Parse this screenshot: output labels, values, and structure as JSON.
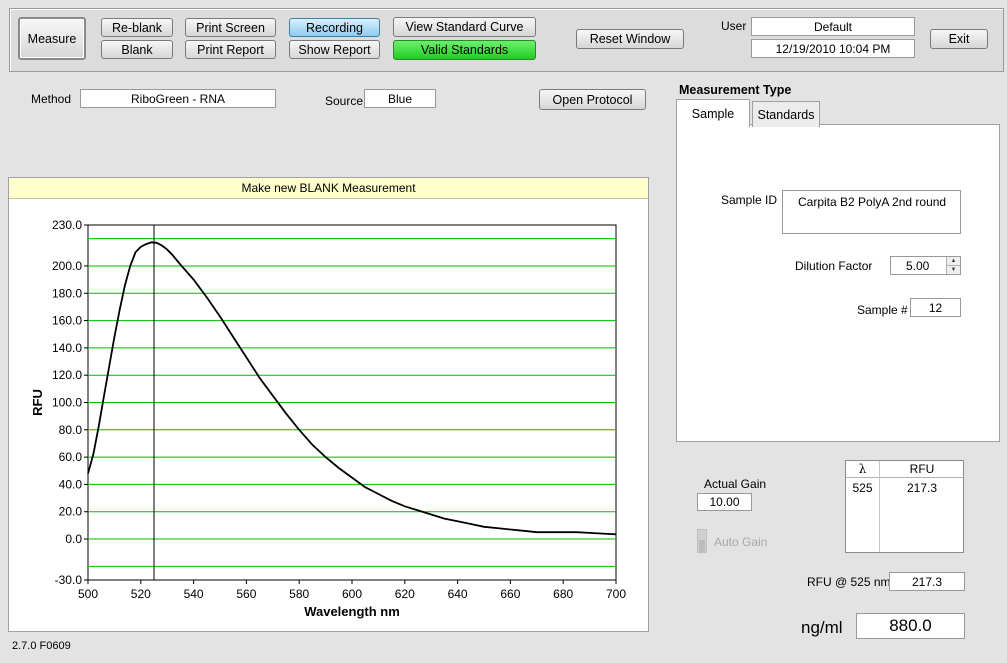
{
  "toolbar": {
    "measure": "Measure",
    "reblank": "Re-blank",
    "blank": "Blank",
    "print_screen": "Print Screen",
    "print_report": "Print Report",
    "recording": "Recording",
    "show_report": "Show Report",
    "view_standard_curve": "View Standard Curve",
    "valid_standards": "Valid Standards",
    "reset_window": "Reset Window",
    "user_label": "User",
    "user_value": "Default",
    "datetime": "12/19/2010  10:04 PM",
    "exit": "Exit"
  },
  "method": {
    "label": "Method",
    "value": "RiboGreen - RNA"
  },
  "source": {
    "label": "Source",
    "value": "Blue"
  },
  "open_protocol": "Open Protocol",
  "measurement_type": {
    "title": "Measurement Type",
    "tabs": [
      "Sample",
      "Standards"
    ],
    "active_tab": 0,
    "sample_id_label": "Sample ID",
    "sample_id_value": "Carpita B2 PolyA 2nd round",
    "dilution_label": "Dilution Factor",
    "dilution_value": "5.00",
    "sample_num_label": "Sample #",
    "sample_num_value": "12"
  },
  "gain": {
    "actual_label": "Actual Gain",
    "actual_value": "10.00",
    "auto_label": "Auto Gain"
  },
  "rfu_table": {
    "headers": [
      "λ",
      "RFU"
    ],
    "rows": [
      [
        "525",
        "217.3"
      ]
    ]
  },
  "rfu_at": {
    "label": "RFU @ 525 nm",
    "value": "217.3"
  },
  "conc": {
    "label": "ng/ml",
    "value": "880.0"
  },
  "version": "2.7.0 F0609",
  "chart_banner": "Make new BLANK Measurement",
  "chart_data": {
    "type": "line",
    "xlabel": "Wavelength  nm",
    "ylabel": "RFU",
    "xlim": [
      500,
      700
    ],
    "ylim": [
      -30,
      230
    ],
    "x_ticks": [
      500,
      520,
      540,
      560,
      580,
      600,
      620,
      640,
      660,
      680,
      700
    ],
    "y_ticks": [
      230.0,
      200.0,
      180.0,
      160.0,
      140.0,
      120.0,
      100.0,
      80.0,
      60.0,
      40.0,
      20.0,
      0.0,
      -30.0
    ],
    "y_tick_labels": [
      "230.0",
      "200.0",
      "180.0",
      "160.0",
      "140.0",
      "120.0",
      "100.0",
      "80.0",
      "60.0",
      "40.0",
      "20.0",
      "0.0",
      "-30.0"
    ],
    "gridlines_y": [
      220,
      200,
      180,
      160,
      140,
      120,
      100,
      80,
      60,
      40,
      20,
      0,
      -20
    ],
    "grid_color": "#00bb00",
    "cursor_x": 525,
    "series": [
      {
        "color": "#000000",
        "x": [
          500,
          502,
          504,
          506,
          508,
          510,
          512,
          514,
          516,
          518,
          520,
          522,
          524,
          526,
          528,
          530,
          532,
          535,
          540,
          545,
          550,
          555,
          560,
          565,
          570,
          575,
          580,
          585,
          590,
          595,
          600,
          605,
          610,
          615,
          620,
          625,
          630,
          635,
          640,
          645,
          650,
          655,
          660,
          665,
          670,
          675,
          680,
          685,
          690,
          695,
          700
        ],
        "y": [
          48,
          62,
          82,
          104,
          126,
          148,
          168,
          186,
          200,
          210,
          214,
          216,
          217.3,
          217,
          215,
          212,
          208,
          201,
          190,
          177,
          163,
          148,
          133,
          118,
          105,
          92,
          80,
          69,
          60,
          52,
          45,
          38,
          33,
          28,
          24,
          21,
          18,
          15,
          13,
          11,
          9,
          8,
          7,
          6,
          5,
          5,
          5,
          5,
          4.5,
          4,
          3.5
        ]
      }
    ]
  }
}
